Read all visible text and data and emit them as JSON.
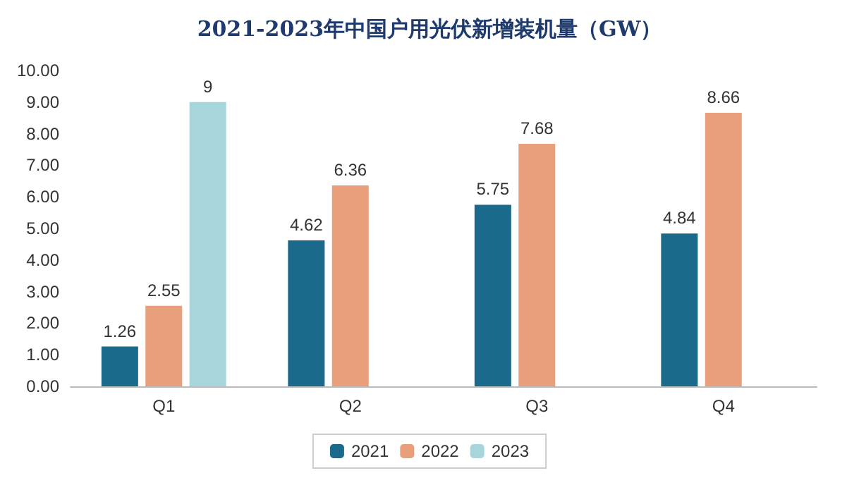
{
  "chart_data": {
    "type": "bar",
    "title": "2021-2023年中国户用光伏新增装机量（GW）",
    "categories": [
      "Q1",
      "Q2",
      "Q3",
      "Q4"
    ],
    "series": [
      {
        "name": "2021",
        "color": "#1b6a8c",
        "values": [
          1.26,
          4.62,
          5.75,
          4.84
        ]
      },
      {
        "name": "2022",
        "color": "#e99f7c",
        "values": [
          2.55,
          6.36,
          7.68,
          8.66
        ]
      },
      {
        "name": "2023",
        "color": "#a6d6dc",
        "values": [
          9,
          null,
          null,
          null
        ]
      }
    ],
    "ylim": [
      0,
      10
    ],
    "yticks": [
      {
        "value": 0,
        "label": "0.00"
      },
      {
        "value": 1,
        "label": "1.00"
      },
      {
        "value": 2,
        "label": "2.00"
      },
      {
        "value": 3,
        "label": "3.00"
      },
      {
        "value": 4,
        "label": "4.00"
      },
      {
        "value": 5,
        "label": "5.00"
      },
      {
        "value": 6,
        "label": "6.00"
      },
      {
        "value": 7,
        "label": "7.00"
      },
      {
        "value": 8,
        "label": "8.00"
      },
      {
        "value": 9,
        "label": "9.00"
      },
      {
        "value": 10,
        "label": "10.00"
      }
    ],
    "grid": false,
    "legend": "bottom",
    "data_labels": true
  }
}
